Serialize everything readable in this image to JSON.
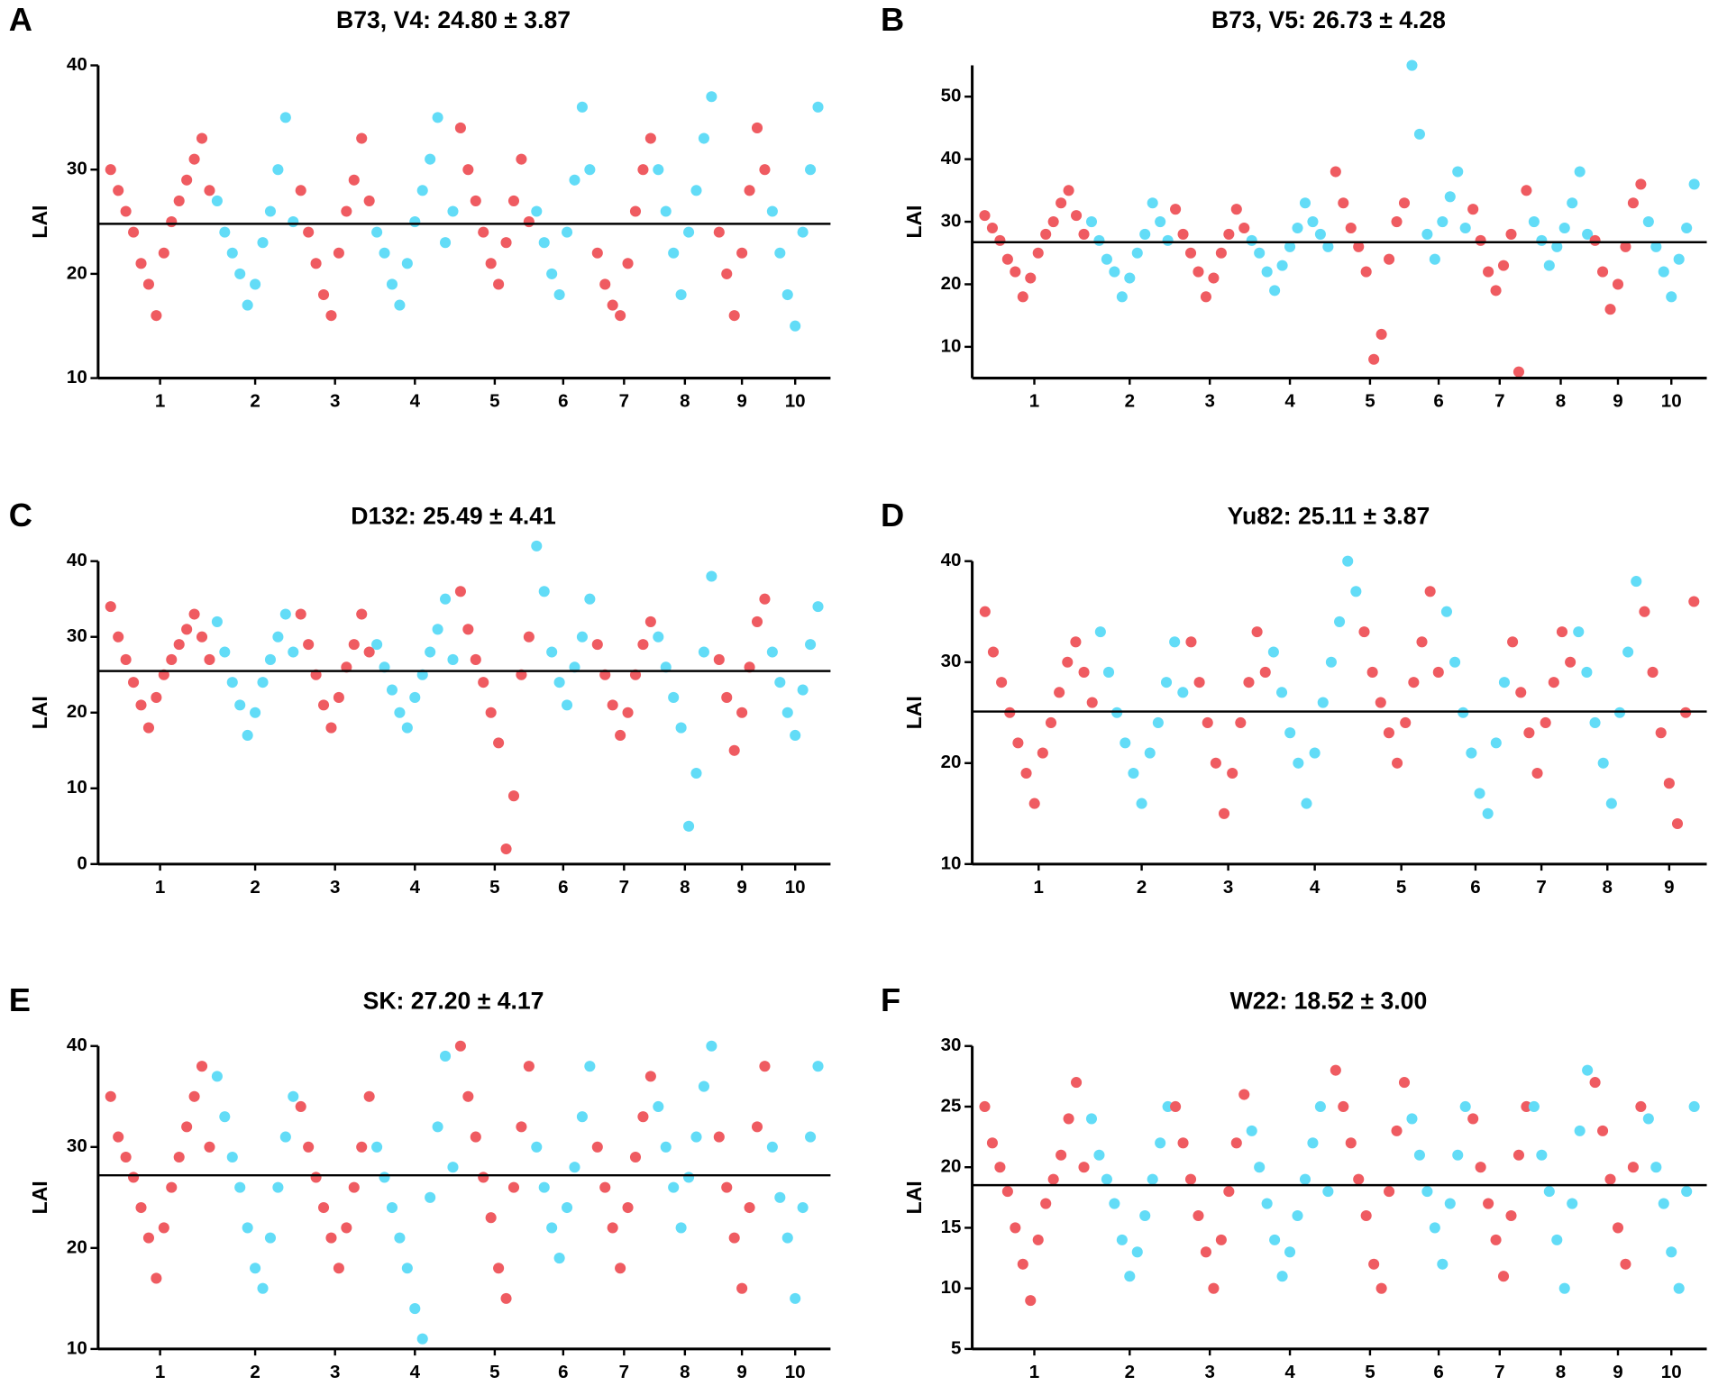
{
  "chart_data": [
    {
      "type": "scatter",
      "panel": "A",
      "title": "B73, V4: 24.80 ± 3.87",
      "ylabel": "LAI",
      "categories": [
        "1",
        "2",
        "3",
        "4",
        "5",
        "6",
        "7",
        "8",
        "9",
        "10"
      ],
      "values": [
        [
          30,
          28,
          26,
          24,
          21,
          19,
          16,
          22,
          25,
          27,
          29,
          31,
          33,
          28
        ],
        [
          27,
          24,
          22,
          20,
          17,
          19,
          23,
          26,
          30,
          35,
          25
        ],
        [
          28,
          24,
          21,
          18,
          16,
          22,
          26,
          29,
          33,
          27
        ],
        [
          24,
          22,
          19,
          17,
          21,
          25,
          28,
          31,
          35,
          23,
          26
        ],
        [
          34,
          30,
          27,
          24,
          21,
          19,
          23,
          27,
          31,
          25
        ],
        [
          26,
          23,
          20,
          18,
          24,
          29,
          36,
          30
        ],
        [
          22,
          19,
          17,
          16,
          21,
          26,
          30,
          33
        ],
        [
          30,
          26,
          22,
          18,
          24,
          28,
          33,
          37
        ],
        [
          24,
          20,
          16,
          22,
          28,
          34,
          30
        ],
        [
          26,
          22,
          18,
          15,
          24,
          30,
          36
        ]
      ],
      "colors": [
        "#ef5b61",
        "#62dcf7"
      ],
      "mean": 24.8,
      "ylim": [
        10,
        40
      ],
      "yticks": [
        10,
        20,
        30,
        40
      ]
    },
    {
      "type": "scatter",
      "panel": "B",
      "title": "B73, V5: 26.73 ± 4.28",
      "ylabel": "LAI",
      "categories": [
        "1",
        "2",
        "3",
        "4",
        "5",
        "6",
        "7",
        "8",
        "9",
        "10"
      ],
      "values": [
        [
          31,
          29,
          27,
          24,
          22,
          18,
          21,
          25,
          28,
          30,
          33,
          35,
          31,
          28
        ],
        [
          30,
          27,
          24,
          22,
          18,
          21,
          25,
          28,
          33,
          30,
          27
        ],
        [
          32,
          28,
          25,
          22,
          18,
          21,
          25,
          28,
          32,
          29
        ],
        [
          27,
          25,
          22,
          19,
          23,
          26,
          29,
          33,
          30,
          28,
          26
        ],
        [
          38,
          33,
          29,
          26,
          22,
          8,
          12,
          24,
          30,
          33
        ],
        [
          55,
          44,
          28,
          24,
          30,
          34,
          38,
          29
        ],
        [
          32,
          27,
          22,
          19,
          23,
          28,
          6,
          35
        ],
        [
          30,
          27,
          23,
          26,
          29,
          33,
          38,
          28
        ],
        [
          27,
          22,
          16,
          20,
          26,
          33,
          36
        ],
        [
          30,
          26,
          22,
          18,
          24,
          29,
          36
        ]
      ],
      "colors": [
        "#ef5b61",
        "#62dcf7"
      ],
      "mean": 26.73,
      "ylim": [
        5,
        55
      ],
      "yticks": [
        10,
        20,
        30,
        40,
        50
      ]
    },
    {
      "type": "scatter",
      "panel": "C",
      "title": "D132: 25.49 ± 4.41",
      "ylabel": "LAI",
      "categories": [
        "1",
        "2",
        "3",
        "4",
        "5",
        "6",
        "7",
        "8",
        "9",
        "10"
      ],
      "values": [
        [
          34,
          30,
          27,
          24,
          21,
          18,
          22,
          25,
          27,
          29,
          31,
          33,
          30,
          27
        ],
        [
          32,
          28,
          24,
          21,
          17,
          20,
          24,
          27,
          30,
          33,
          28
        ],
        [
          33,
          29,
          25,
          21,
          18,
          22,
          26,
          29,
          33,
          28
        ],
        [
          29,
          26,
          23,
          20,
          18,
          22,
          25,
          28,
          31,
          35,
          27
        ],
        [
          36,
          31,
          27,
          24,
          20,
          16,
          2,
          9,
          25,
          30
        ],
        [
          42,
          36,
          28,
          24,
          21,
          26,
          30,
          35
        ],
        [
          29,
          25,
          21,
          17,
          20,
          25,
          29,
          32
        ],
        [
          30,
          26,
          22,
          18,
          5,
          12,
          28,
          38
        ],
        [
          27,
          22,
          15,
          20,
          26,
          32,
          35
        ],
        [
          28,
          24,
          20,
          17,
          23,
          29,
          34
        ]
      ],
      "colors": [
        "#ef5b61",
        "#62dcf7"
      ],
      "mean": 25.49,
      "ylim": [
        0,
        40
      ],
      "yticks": [
        0,
        10,
        20,
        30,
        40
      ]
    },
    {
      "type": "scatter",
      "panel": "D",
      "title": "Yu82: 25.11 ± 3.87",
      "ylabel": "LAI",
      "categories": [
        "1",
        "2",
        "3",
        "4",
        "5",
        "6",
        "7",
        "8",
        "9"
      ],
      "values": [
        [
          35,
          31,
          28,
          25,
          22,
          19,
          16,
          21,
          24,
          27,
          30,
          32,
          29,
          26
        ],
        [
          33,
          29,
          25,
          22,
          19,
          16,
          21,
          24,
          28,
          32,
          27
        ],
        [
          32,
          28,
          24,
          20,
          15,
          19,
          24,
          28,
          33,
          29
        ],
        [
          31,
          27,
          23,
          20,
          16,
          21,
          26,
          30,
          34,
          40,
          37
        ],
        [
          33,
          29,
          26,
          23,
          20,
          24,
          28,
          32,
          37,
          29
        ],
        [
          35,
          30,
          25,
          21,
          17,
          15,
          22,
          28
        ],
        [
          32,
          27,
          23,
          19,
          24,
          28,
          33,
          30
        ],
        [
          33,
          29,
          24,
          20,
          16,
          25,
          31,
          38
        ],
        [
          35,
          29,
          23,
          18,
          14,
          25,
          36
        ]
      ],
      "colors": [
        "#ef5b61",
        "#62dcf7"
      ],
      "mean": 25.11,
      "ylim": [
        10,
        40
      ],
      "yticks": [
        10,
        20,
        30,
        40
      ]
    },
    {
      "type": "scatter",
      "panel": "E",
      "title": "SK: 27.20 ± 4.17",
      "ylabel": "LAI",
      "categories": [
        "1",
        "2",
        "3",
        "4",
        "5",
        "6",
        "7",
        "8",
        "9",
        "10"
      ],
      "values": [
        [
          35,
          31,
          29,
          27,
          24,
          21,
          17,
          22,
          26,
          29,
          32,
          35,
          38,
          30
        ],
        [
          37,
          33,
          29,
          26,
          22,
          18,
          16,
          21,
          26,
          31,
          35
        ],
        [
          34,
          30,
          27,
          24,
          21,
          18,
          22,
          26,
          30,
          35
        ],
        [
          30,
          27,
          24,
          21,
          18,
          14,
          11,
          25,
          32,
          39,
          28
        ],
        [
          40,
          35,
          31,
          27,
          23,
          18,
          15,
          26,
          32,
          38
        ],
        [
          30,
          26,
          22,
          19,
          24,
          28,
          33,
          38
        ],
        [
          30,
          26,
          22,
          18,
          24,
          29,
          33,
          37
        ],
        [
          34,
          30,
          26,
          22,
          27,
          31,
          36,
          40
        ],
        [
          31,
          26,
          21,
          16,
          24,
          32,
          38
        ],
        [
          30,
          25,
          21,
          15,
          24,
          31,
          38
        ]
      ],
      "colors": [
        "#ef5b61",
        "#62dcf7"
      ],
      "mean": 27.2,
      "ylim": [
        10,
        40
      ],
      "yticks": [
        10,
        20,
        30,
        40
      ]
    },
    {
      "type": "scatter",
      "panel": "F",
      "title": "W22: 18.52 ± 3.00",
      "ylabel": "LAI",
      "categories": [
        "1",
        "2",
        "3",
        "4",
        "5",
        "6",
        "7",
        "8",
        "9",
        "10"
      ],
      "values": [
        [
          25,
          22,
          20,
          18,
          15,
          12,
          9,
          14,
          17,
          19,
          21,
          24,
          27,
          20
        ],
        [
          24,
          21,
          19,
          17,
          14,
          11,
          13,
          16,
          19,
          22,
          25
        ],
        [
          25,
          22,
          19,
          16,
          13,
          10,
          14,
          18,
          22,
          26
        ],
        [
          23,
          20,
          17,
          14,
          11,
          13,
          16,
          19,
          22,
          25,
          18
        ],
        [
          28,
          25,
          22,
          19,
          16,
          12,
          10,
          18,
          23,
          27
        ],
        [
          24,
          21,
          18,
          15,
          12,
          17,
          21,
          25
        ],
        [
          24,
          20,
          17,
          14,
          11,
          16,
          21,
          25
        ],
        [
          25,
          21,
          18,
          14,
          10,
          17,
          23,
          28
        ],
        [
          27,
          23,
          19,
          15,
          12,
          20,
          25
        ],
        [
          24,
          20,
          17,
          13,
          10,
          18,
          25
        ]
      ],
      "colors": [
        "#ef5b61",
        "#62dcf7"
      ],
      "mean": 18.52,
      "ylim": [
        5,
        30
      ],
      "yticks": [
        5,
        10,
        15,
        20,
        25,
        30
      ]
    }
  ]
}
